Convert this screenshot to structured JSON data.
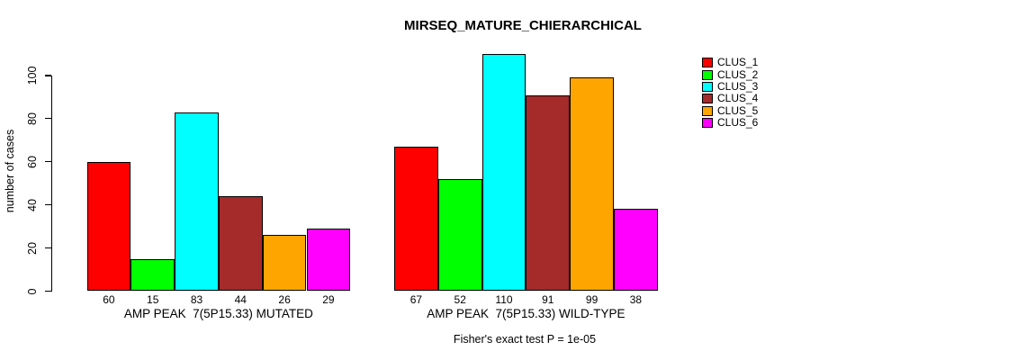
{
  "chart_data": {
    "type": "bar",
    "title": "MIRSEQ_MATURE_CHIERARCHICAL",
    "ylabel": "number of cases",
    "xlabel": "",
    "annotation": "Fisher's exact test P = 1e-05",
    "ylim": [
      0,
      110
    ],
    "yticks": [
      0,
      20,
      40,
      60,
      80,
      100
    ],
    "grid": false,
    "legend_position": "right",
    "bar_value_labels": true,
    "categories": [
      "AMP PEAK  7(5P15.33) MUTATED",
      "AMP PEAK  7(5P15.33) WILD-TYPE"
    ],
    "series": [
      {
        "name": "CLUS_1",
        "color": "#FF0000",
        "values": [
          60,
          67
        ]
      },
      {
        "name": "CLUS_2",
        "color": "#00FF00",
        "values": [
          15,
          52
        ]
      },
      {
        "name": "CLUS_3",
        "color": "#00FFFF",
        "values": [
          83,
          110
        ]
      },
      {
        "name": "CLUS_4",
        "color": "#A52A2A",
        "values": [
          44,
          91
        ]
      },
      {
        "name": "CLUS_5",
        "color": "#FFA500",
        "values": [
          26,
          99
        ]
      },
      {
        "name": "CLUS_6",
        "color": "#FF00FF",
        "values": [
          29,
          38
        ]
      }
    ]
  }
}
